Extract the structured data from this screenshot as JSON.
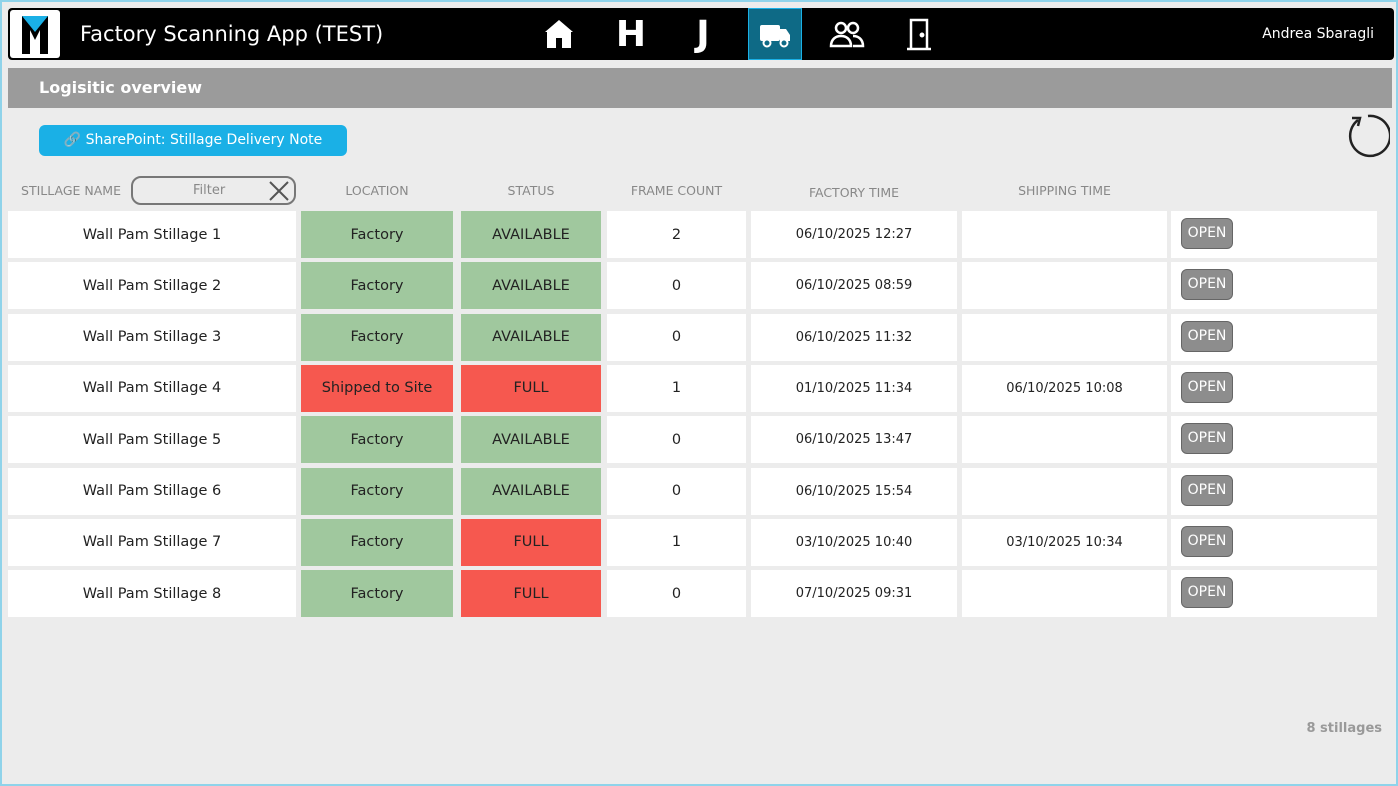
{
  "header": {
    "title": "Factory Scanning App (TEST)",
    "nav_letters": [
      "H",
      "J"
    ],
    "user": "Andrea Sbaragli"
  },
  "section": {
    "title": "Logisitic overview",
    "link_button": "SharePoint: Stillage Delivery Note"
  },
  "table": {
    "filter_placeholder": "Filter",
    "columns": [
      "STILLAGE NAME",
      "LOCATION",
      "STATUS",
      "FRAME COUNT",
      "FACTORY TIME",
      "SHIPPING TIME"
    ],
    "open_button": "OPEN",
    "rows": [
      {
        "name": "Wall Pam Stillage 1",
        "location": "Factory",
        "location_color": "#a0c89e",
        "status": "AVAILABLE",
        "status_color": "#a0c89e",
        "frame_count": 2,
        "factory_time": "06/10/2025 12:27",
        "shipping_time": null
      },
      {
        "name": "Wall Pam Stillage 2",
        "location": "Factory",
        "location_color": "#a0c89e",
        "status": "AVAILABLE",
        "status_color": "#a0c89e",
        "frame_count": 0,
        "factory_time": "06/10/2025 08:59",
        "shipping_time": null
      },
      {
        "name": "Wall Pam Stillage 3",
        "location": "Factory",
        "location_color": "#a0c89e",
        "status": "AVAILABLE",
        "status_color": "#a0c89e",
        "frame_count": 0,
        "factory_time": "06/10/2025 11:32",
        "shipping_time": null
      },
      {
        "name": "Wall Pam Stillage 4",
        "location": "Shipped to Site",
        "location_color": "#f6584f",
        "status": "FULL",
        "status_color": "#f6584f",
        "frame_count": 1,
        "factory_time": "01/10/2025 11:34",
        "shipping_time": "06/10/2025 10:08"
      },
      {
        "name": "Wall Pam Stillage 5",
        "location": "Factory",
        "location_color": "#a0c89e",
        "status": "AVAILABLE",
        "status_color": "#a0c89e",
        "frame_count": 0,
        "factory_time": "06/10/2025 13:47",
        "shipping_time": null
      },
      {
        "name": "Wall Pam Stillage 6",
        "location": "Factory",
        "location_color": "#a0c89e",
        "status": "AVAILABLE",
        "status_color": "#a0c89e",
        "frame_count": 0,
        "factory_time": "06/10/2025 15:54",
        "shipping_time": null
      },
      {
        "name": "Wall Pam Stillage 7",
        "location": "Factory",
        "location_color": "#a0c89e",
        "status": "FULL",
        "status_color": "#f6584f",
        "frame_count": 1,
        "factory_time": "03/10/2025 10:40",
        "shipping_time": "03/10/2025 10:34"
      },
      {
        "name": "Wall Pam Stillage 8",
        "location": "Factory",
        "location_color": "#a0c89e",
        "status": "FULL",
        "status_color": "#f6584f",
        "frame_count": 0,
        "factory_time": "07/10/2025 09:31",
        "shipping_time": null
      }
    ]
  },
  "footer": {
    "count": "8 stillages"
  }
}
